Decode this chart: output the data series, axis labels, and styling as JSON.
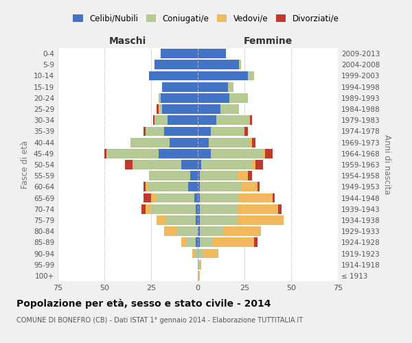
{
  "age_groups": [
    "100+",
    "95-99",
    "90-94",
    "85-89",
    "80-84",
    "75-79",
    "70-74",
    "65-69",
    "60-64",
    "55-59",
    "50-54",
    "45-49",
    "40-44",
    "35-39",
    "30-34",
    "25-29",
    "20-24",
    "15-19",
    "10-14",
    "5-9",
    "0-4"
  ],
  "birth_years": [
    "≤ 1913",
    "1914-1918",
    "1919-1923",
    "1924-1928",
    "1929-1933",
    "1934-1938",
    "1939-1943",
    "1944-1948",
    "1949-1953",
    "1954-1958",
    "1959-1963",
    "1964-1968",
    "1969-1973",
    "1974-1978",
    "1979-1983",
    "1984-1988",
    "1989-1993",
    "1994-1998",
    "1999-2003",
    "2004-2008",
    "2009-2013"
  ],
  "maschi": {
    "celibi": [
      0,
      0,
      0,
      1,
      0,
      1,
      1,
      2,
      5,
      4,
      9,
      21,
      15,
      18,
      16,
      19,
      20,
      19,
      26,
      23,
      20
    ],
    "coniugati": [
      0,
      0,
      2,
      5,
      11,
      16,
      24,
      20,
      22,
      22,
      26,
      28,
      21,
      10,
      7,
      2,
      1,
      0,
      0,
      0,
      0
    ],
    "vedovi": [
      0,
      0,
      1,
      3,
      7,
      5,
      3,
      3,
      1,
      0,
      0,
      0,
      0,
      0,
      0,
      0,
      0,
      0,
      0,
      0,
      0
    ],
    "divorziati": [
      0,
      0,
      0,
      0,
      0,
      0,
      2,
      4,
      1,
      0,
      4,
      1,
      0,
      1,
      1,
      1,
      0,
      0,
      0,
      0,
      0
    ]
  },
  "femmine": {
    "nubili": [
      0,
      0,
      0,
      1,
      1,
      1,
      1,
      1,
      1,
      1,
      2,
      7,
      6,
      7,
      10,
      12,
      17,
      16,
      27,
      22,
      15
    ],
    "coniugate": [
      0,
      1,
      3,
      7,
      13,
      20,
      20,
      21,
      22,
      20,
      27,
      28,
      22,
      18,
      18,
      10,
      10,
      3,
      3,
      1,
      0
    ],
    "vedove": [
      1,
      1,
      8,
      22,
      20,
      25,
      22,
      18,
      9,
      6,
      2,
      1,
      1,
      0,
      0,
      0,
      0,
      0,
      0,
      0,
      0
    ],
    "divorziate": [
      0,
      0,
      0,
      2,
      0,
      0,
      2,
      1,
      1,
      2,
      4,
      4,
      2,
      2,
      1,
      0,
      0,
      0,
      0,
      0,
      0
    ]
  },
  "colors": {
    "celibi": "#4472C4",
    "coniugati": "#B5C994",
    "vedovi": "#F0B95E",
    "divorziati": "#C0392B"
  },
  "xlim": 75,
  "title": "Popolazione per età, sesso e stato civile - 2014",
  "subtitle": "COMUNE DI BONEFRO (CB) - Dati ISTAT 1° gennaio 2014 - Elaborazione TUTTITALIA.IT",
  "ylabel_left": "Fasce di età",
  "ylabel_right": "Anni di nascita",
  "xlabel_maschi": "Maschi",
  "xlabel_femmine": "Femmine",
  "bg_color": "#f0f0f0",
  "plot_bg": "#ffffff",
  "grid_color": "#cccccc"
}
